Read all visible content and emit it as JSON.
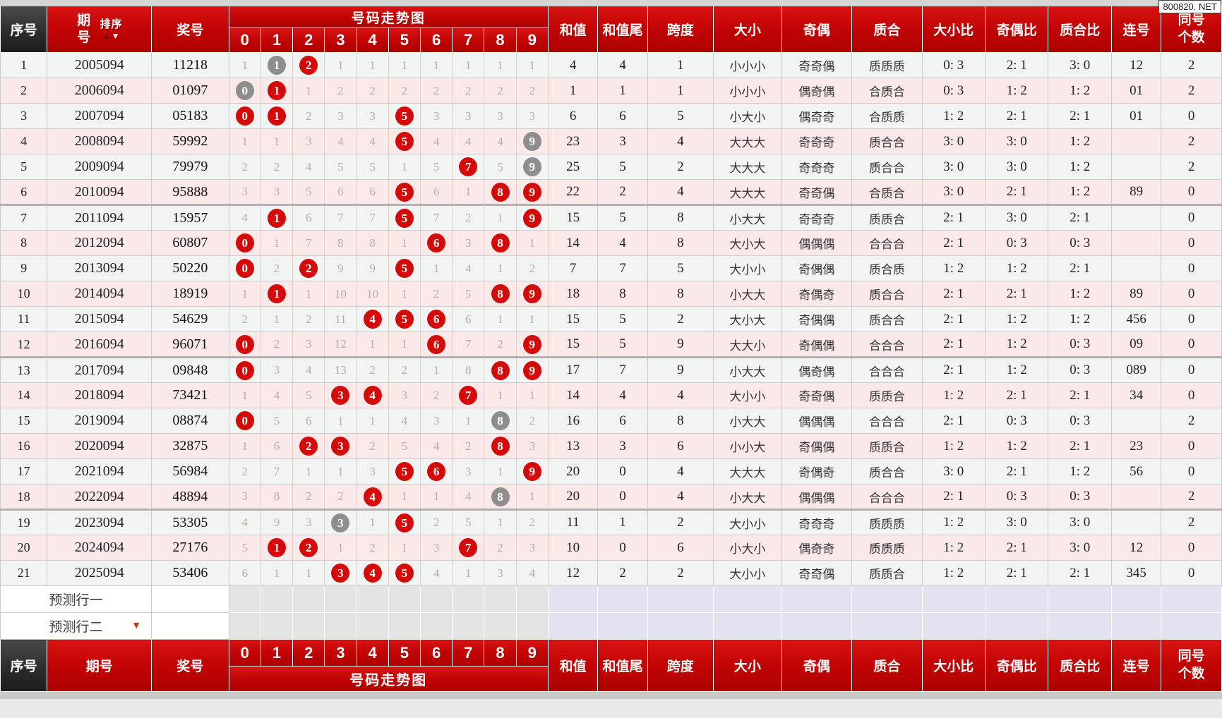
{
  "watermark": "800820. NET",
  "icons": {
    "sort_up": "▲",
    "sort_down": "▼",
    "pred_arrow": "▼"
  },
  "colors": {
    "header_red": "#c40404",
    "header_black": "#2a2a2a",
    "ball_red": "#d60909",
    "ball_gray": "#8e8e8e",
    "trend_cell_bg": "#f8eed9",
    "row_pink": "#fbe9e9",
    "row_gray": "#f2f4f4",
    "prediction_gray": "#e4e4e4",
    "prediction_lavender": "#e2e2f1"
  },
  "headers": {
    "seq": "序号",
    "period": "期号",
    "sort": "排序",
    "number": "奖号",
    "trend_banner": "号码走势图",
    "digits": [
      "0",
      "1",
      "2",
      "3",
      "4",
      "5",
      "6",
      "7",
      "8",
      "9"
    ],
    "sum": "和值",
    "sum_tail": "和值尾",
    "span": "跨度",
    "size": "大小",
    "parity": "奇偶",
    "prime": "质合",
    "size_ratio": "大小比",
    "parity_ratio": "奇偶比",
    "prime_ratio": "质合比",
    "consecutive": "连号",
    "same_count": "同号个数"
  },
  "prediction_rows": [
    {
      "label": "预测行一"
    },
    {
      "label": "预测行二"
    }
  ],
  "legend_note": "trend cell codes: plain = miss count, suffix r = red ball (drawn digit), suffix g = gray ball (repeated digit)",
  "rows": [
    {
      "seq": "1",
      "period": "2005094",
      "number": "11218",
      "trend": [
        "1",
        "1g",
        "2r",
        "1",
        "1",
        "1",
        "1",
        "1",
        "1",
        "1"
      ],
      "sum": "4",
      "sum_tail": "4",
      "span": "1",
      "size": "小小小",
      "parity": "奇奇偶",
      "prime": "质质质",
      "size_ratio": "0: 3",
      "parity_ratio": "2: 1",
      "prime_ratio": "3: 0",
      "consecutive": "12",
      "same_count": "2"
    },
    {
      "seq": "2",
      "period": "2006094",
      "number": "01097",
      "trend": [
        "0g",
        "1r",
        "1",
        "2",
        "2",
        "2",
        "2",
        "2",
        "2",
        "2"
      ],
      "sum": "1",
      "sum_tail": "1",
      "span": "1",
      "size": "小小小",
      "parity": "偶奇偶",
      "prime": "合质合",
      "size_ratio": "0: 3",
      "parity_ratio": "1: 2",
      "prime_ratio": "1: 2",
      "consecutive": "01",
      "same_count": "2"
    },
    {
      "seq": "3",
      "period": "2007094",
      "number": "05183",
      "trend": [
        "0r",
        "1r",
        "2",
        "3",
        "3",
        "5r",
        "3",
        "3",
        "3",
        "3"
      ],
      "sum": "6",
      "sum_tail": "6",
      "span": "5",
      "size": "小大小",
      "parity": "偶奇奇",
      "prime": "合质质",
      "size_ratio": "1: 2",
      "parity_ratio": "2: 1",
      "prime_ratio": "2: 1",
      "consecutive": "01",
      "same_count": "0"
    },
    {
      "seq": "4",
      "period": "2008094",
      "number": "59992",
      "trend": [
        "1",
        "1",
        "3",
        "4",
        "4",
        "5r",
        "4",
        "4",
        "4",
        "9g"
      ],
      "sum": "23",
      "sum_tail": "3",
      "span": "4",
      "size": "大大大",
      "parity": "奇奇奇",
      "prime": "质合合",
      "size_ratio": "3: 0",
      "parity_ratio": "3: 0",
      "prime_ratio": "1: 2",
      "consecutive": "",
      "same_count": "2"
    },
    {
      "seq": "5",
      "period": "2009094",
      "number": "79979",
      "trend": [
        "2",
        "2",
        "4",
        "5",
        "5",
        "1",
        "5",
        "7r",
        "5",
        "9g"
      ],
      "sum": "25",
      "sum_tail": "5",
      "span": "2",
      "size": "大大大",
      "parity": "奇奇奇",
      "prime": "质合合",
      "size_ratio": "3: 0",
      "parity_ratio": "3: 0",
      "prime_ratio": "1: 2",
      "consecutive": "",
      "same_count": "2"
    },
    {
      "seq": "6",
      "period": "2010094",
      "number": "95888",
      "trend": [
        "3",
        "3",
        "5",
        "6",
        "6",
        "5r",
        "6",
        "1",
        "8r",
        "9r"
      ],
      "sum": "22",
      "sum_tail": "2",
      "span": "4",
      "size": "大大大",
      "parity": "奇奇偶",
      "prime": "合质合",
      "size_ratio": "3: 0",
      "parity_ratio": "2: 1",
      "prime_ratio": "1: 2",
      "consecutive": "89",
      "same_count": "0"
    },
    {
      "seq": "7",
      "period": "2011094",
      "number": "15957",
      "trend": [
        "4",
        "1r",
        "6",
        "7",
        "7",
        "5r",
        "7",
        "2",
        "1",
        "9r"
      ],
      "sum": "15",
      "sum_tail": "5",
      "span": "8",
      "size": "小大大",
      "parity": "奇奇奇",
      "prime": "质质合",
      "size_ratio": "2: 1",
      "parity_ratio": "3: 0",
      "prime_ratio": "2: 1",
      "consecutive": "",
      "same_count": "0"
    },
    {
      "seq": "8",
      "period": "2012094",
      "number": "60807",
      "trend": [
        "0r",
        "1",
        "7",
        "8",
        "8",
        "1",
        "6r",
        "3",
        "8r",
        "1"
      ],
      "sum": "14",
      "sum_tail": "4",
      "span": "8",
      "size": "大小大",
      "parity": "偶偶偶",
      "prime": "合合合",
      "size_ratio": "2: 1",
      "parity_ratio": "0: 3",
      "prime_ratio": "0: 3",
      "consecutive": "",
      "same_count": "0"
    },
    {
      "seq": "9",
      "period": "2013094",
      "number": "50220",
      "trend": [
        "0r",
        "2",
        "2r",
        "9",
        "9",
        "5r",
        "1",
        "4",
        "1",
        "2"
      ],
      "sum": "7",
      "sum_tail": "7",
      "span": "5",
      "size": "大小小",
      "parity": "奇偶偶",
      "prime": "质合质",
      "size_ratio": "1: 2",
      "parity_ratio": "1: 2",
      "prime_ratio": "2: 1",
      "consecutive": "",
      "same_count": "0"
    },
    {
      "seq": "10",
      "period": "2014094",
      "number": "18919",
      "trend": [
        "1",
        "1r",
        "1",
        "10",
        "10",
        "1",
        "2",
        "5",
        "8r",
        "9r"
      ],
      "sum": "18",
      "sum_tail": "8",
      "span": "8",
      "size": "小大大",
      "parity": "奇偶奇",
      "prime": "质合合",
      "size_ratio": "2: 1",
      "parity_ratio": "2: 1",
      "prime_ratio": "1: 2",
      "consecutive": "89",
      "same_count": "0"
    },
    {
      "seq": "11",
      "period": "2015094",
      "number": "54629",
      "trend": [
        "2",
        "1",
        "2",
        "11",
        "4r",
        "5r",
        "6r",
        "6",
        "1",
        "1"
      ],
      "sum": "15",
      "sum_tail": "5",
      "span": "2",
      "size": "大小大",
      "parity": "奇偶偶",
      "prime": "质合合",
      "size_ratio": "2: 1",
      "parity_ratio": "1: 2",
      "prime_ratio": "1: 2",
      "consecutive": "456",
      "same_count": "0"
    },
    {
      "seq": "12",
      "period": "2016094",
      "number": "96071",
      "trend": [
        "0r",
        "2",
        "3",
        "12",
        "1",
        "1",
        "6r",
        "7",
        "2",
        "9r"
      ],
      "sum": "15",
      "sum_tail": "5",
      "span": "9",
      "size": "大大小",
      "parity": "奇偶偶",
      "prime": "合合合",
      "size_ratio": "2: 1",
      "parity_ratio": "1: 2",
      "prime_ratio": "0: 3",
      "consecutive": "09",
      "same_count": "0"
    },
    {
      "seq": "13",
      "period": "2017094",
      "number": "09848",
      "trend": [
        "0r",
        "3",
        "4",
        "13",
        "2",
        "2",
        "1",
        "8",
        "8r",
        "9r"
      ],
      "sum": "17",
      "sum_tail": "7",
      "span": "9",
      "size": "小大大",
      "parity": "偶奇偶",
      "prime": "合合合",
      "size_ratio": "2: 1",
      "parity_ratio": "1: 2",
      "prime_ratio": "0: 3",
      "consecutive": "089",
      "same_count": "0"
    },
    {
      "seq": "14",
      "period": "2018094",
      "number": "73421",
      "trend": [
        "1",
        "4",
        "5",
        "3r",
        "4r",
        "3",
        "2",
        "7r",
        "1",
        "1"
      ],
      "sum": "14",
      "sum_tail": "4",
      "span": "4",
      "size": "大小小",
      "parity": "奇奇偶",
      "prime": "质质合",
      "size_ratio": "1: 2",
      "parity_ratio": "2: 1",
      "prime_ratio": "2: 1",
      "consecutive": "34",
      "same_count": "0"
    },
    {
      "seq": "15",
      "period": "2019094",
      "number": "08874",
      "trend": [
        "0r",
        "5",
        "6",
        "1",
        "1",
        "4",
        "3",
        "1",
        "8g",
        "2"
      ],
      "sum": "16",
      "sum_tail": "6",
      "span": "8",
      "size": "小大大",
      "parity": "偶偶偶",
      "prime": "合合合",
      "size_ratio": "2: 1",
      "parity_ratio": "0: 3",
      "prime_ratio": "0: 3",
      "consecutive": "",
      "same_count": "2"
    },
    {
      "seq": "16",
      "period": "2020094",
      "number": "32875",
      "trend": [
        "1",
        "6",
        "2r",
        "3r",
        "2",
        "5",
        "4",
        "2",
        "8r",
        "3"
      ],
      "sum": "13",
      "sum_tail": "3",
      "span": "6",
      "size": "小小大",
      "parity": "奇偶偶",
      "prime": "质质合",
      "size_ratio": "1: 2",
      "parity_ratio": "1: 2",
      "prime_ratio": "2: 1",
      "consecutive": "23",
      "same_count": "0"
    },
    {
      "seq": "17",
      "period": "2021094",
      "number": "56984",
      "trend": [
        "2",
        "7",
        "1",
        "1",
        "3",
        "5r",
        "6r",
        "3",
        "1",
        "9r"
      ],
      "sum": "20",
      "sum_tail": "0",
      "span": "4",
      "size": "大大大",
      "parity": "奇偶奇",
      "prime": "质合合",
      "size_ratio": "3: 0",
      "parity_ratio": "2: 1",
      "prime_ratio": "1: 2",
      "consecutive": "56",
      "same_count": "0"
    },
    {
      "seq": "18",
      "period": "2022094",
      "number": "48894",
      "trend": [
        "3",
        "8",
        "2",
        "2",
        "4r",
        "1",
        "1",
        "4",
        "8g",
        "1"
      ],
      "sum": "20",
      "sum_tail": "0",
      "span": "4",
      "size": "小大大",
      "parity": "偶偶偶",
      "prime": "合合合",
      "size_ratio": "2: 1",
      "parity_ratio": "0: 3",
      "prime_ratio": "0: 3",
      "consecutive": "",
      "same_count": "2"
    },
    {
      "seq": "19",
      "period": "2023094",
      "number": "53305",
      "trend": [
        "4",
        "9",
        "3",
        "3g",
        "1",
        "5r",
        "2",
        "5",
        "1",
        "2"
      ],
      "sum": "11",
      "sum_tail": "1",
      "span": "2",
      "size": "大小小",
      "parity": "奇奇奇",
      "prime": "质质质",
      "size_ratio": "1: 2",
      "parity_ratio": "3: 0",
      "prime_ratio": "3: 0",
      "consecutive": "",
      "same_count": "2"
    },
    {
      "seq": "20",
      "period": "2024094",
      "number": "27176",
      "trend": [
        "5",
        "1r",
        "2r",
        "1",
        "2",
        "1",
        "3",
        "7r",
        "2",
        "3"
      ],
      "sum": "10",
      "sum_tail": "0",
      "span": "6",
      "size": "小大小",
      "parity": "偶奇奇",
      "prime": "质质质",
      "size_ratio": "1: 2",
      "parity_ratio": "2: 1",
      "prime_ratio": "3: 0",
      "consecutive": "12",
      "same_count": "0"
    },
    {
      "seq": "21",
      "period": "2025094",
      "number": "53406",
      "trend": [
        "6",
        "1",
        "1",
        "3r",
        "4r",
        "5r",
        "4",
        "1",
        "3",
        "4"
      ],
      "sum": "12",
      "sum_tail": "2",
      "span": "2",
      "size": "大小小",
      "parity": "奇奇偶",
      "prime": "质质合",
      "size_ratio": "1: 2",
      "parity_ratio": "2: 1",
      "prime_ratio": "2: 1",
      "consecutive": "345",
      "same_count": "0"
    }
  ]
}
